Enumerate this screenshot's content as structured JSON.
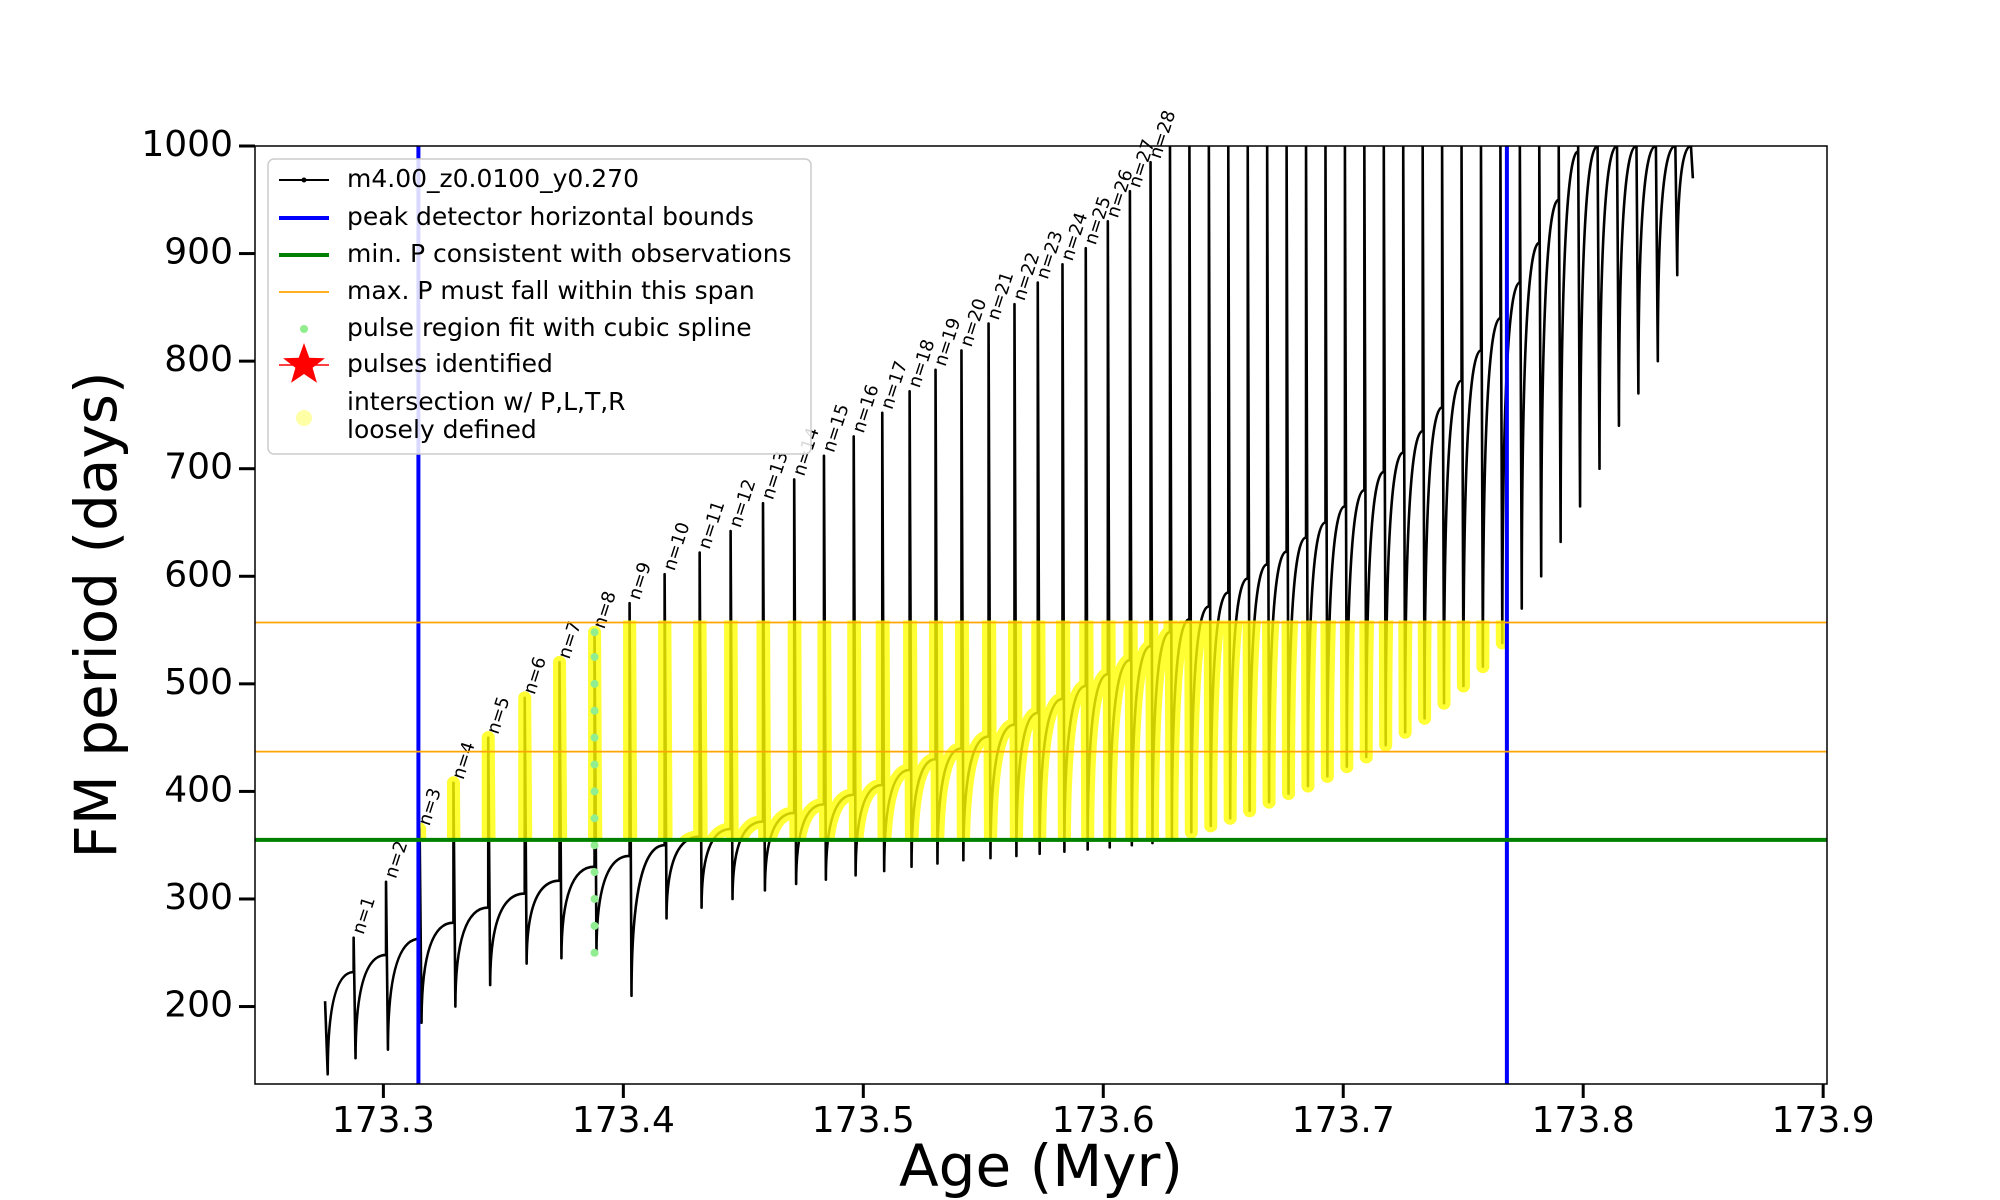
{
  "chart_data": {
    "type": "line",
    "xlabel": "Age (Myr)",
    "ylabel": "FM period (days)",
    "xlim": [
      173.2465,
      173.9016
    ],
    "ylim": [
      128,
      1000
    ],
    "xticks": [
      173.3,
      173.4,
      173.5,
      173.6,
      173.7,
      173.8,
      173.9
    ],
    "yticks": [
      200,
      300,
      400,
      500,
      600,
      700,
      800,
      900,
      1000
    ],
    "series": [
      {
        "name": "m4.00_z0.0100_y0.270",
        "color": "#000000",
        "x": [
          173.2757,
          173.2768,
          173.2876,
          173.2876,
          173.2884,
          173.3011,
          173.3011,
          173.3019,
          173.3151,
          173.3151,
          173.3159,
          173.3292,
          173.3292,
          173.33,
          173.3437,
          173.3437,
          173.3445,
          173.3589,
          173.3589,
          173.3597,
          173.3734,
          173.3734,
          173.3742,
          173.388,
          173.388,
          173.3888,
          173.4026,
          173.4026,
          173.4034,
          173.4172,
          173.4172,
          173.418,
          173.4318,
          173.4318,
          173.4326,
          173.4447,
          173.4447,
          173.4455,
          173.4582,
          173.4582,
          173.459,
          173.4712,
          173.4712,
          173.472,
          173.4836,
          173.4836,
          173.4844,
          173.496,
          173.496,
          173.4968,
          173.5079,
          173.5079,
          173.5087,
          173.5193,
          173.5193,
          173.5201,
          173.5301,
          173.5301,
          173.5309,
          173.5409,
          173.5409,
          173.5417,
          173.5522,
          173.5522,
          173.553,
          173.563,
          173.563,
          173.5638,
          173.5727,
          173.5727,
          173.5735,
          173.583,
          173.583,
          173.5838,
          173.5927,
          173.5927,
          173.5935,
          173.6019,
          173.6019,
          173.6027,
          173.6111,
          173.6111,
          173.6119,
          173.6197,
          173.6197,
          173.6205,
          173.6278,
          173.6278,
          173.6286,
          173.6359,
          173.6359,
          173.6367,
          173.644,
          173.644,
          173.6448,
          173.6521,
          173.6521,
          173.6529,
          173.6602,
          173.6602,
          173.661,
          173.6683,
          173.6683,
          173.6691,
          173.6764,
          173.6764,
          173.6772,
          173.6845,
          173.6845,
          173.6853,
          173.6926,
          173.6926,
          173.6934,
          173.7007,
          173.7007,
          173.7015,
          173.7088,
          173.7088,
          173.7096,
          173.7169,
          173.7169,
          173.7177,
          173.725,
          173.725,
          173.7258,
          173.7331,
          173.7331,
          173.7339,
          173.7412,
          173.7412,
          173.742,
          173.7493,
          173.7493,
          173.7501,
          173.7574,
          173.7574,
          173.7582,
          173.7655,
          173.7655,
          173.7663,
          173.7736,
          173.7736,
          173.7744,
          173.7817,
          173.7817,
          173.7825,
          173.7898,
          173.7898,
          173.7906,
          173.7979,
          173.7979,
          173.7987,
          173.806,
          173.8068,
          173.8141,
          173.8149,
          173.8222,
          173.823,
          173.8303,
          173.8311,
          173.8384,
          173.8392,
          173.8449,
          173.8457
        ],
        "values": [
          205,
          137,
          232,
          264,
          152,
          248,
          316,
          160,
          263,
          365,
          185,
          278,
          408,
          200,
          292,
          450,
          220,
          305,
          487,
          240,
          317,
          520,
          245,
          330,
          548,
          250,
          340,
          575,
          210,
          350,
          602,
          282,
          358,
          622,
          292,
          365,
          642,
          300,
          372,
          668,
          308,
          380,
          690,
          314,
          388,
          712,
          318,
          397,
          730,
          322,
          406,
          752,
          326,
          420,
          772,
          330,
          430,
          792,
          333,
          440,
          810,
          336,
          451,
          835,
          338,
          462,
          853,
          340,
          473,
          873,
          342,
          486,
          890,
          344,
          498,
          905,
          346,
          509,
          930,
          348,
          522,
          958,
          350,
          535,
          985,
          352,
          548,
          1000,
          356,
          560,
          1000,
          362,
          572,
          1000,
          368,
          585,
          1000,
          375,
          598,
          1000,
          382,
          611,
          1000,
          390,
          623,
          1000,
          398,
          636,
          1000,
          405,
          650,
          1000,
          414,
          665,
          1000,
          423,
          680,
          1000,
          432,
          697,
          1000,
          443,
          715,
          1000,
          455,
          735,
          1000,
          468,
          757,
          1000,
          482,
          782,
          1000,
          498,
          810,
          1000,
          516,
          840,
          1000,
          538,
          873,
          1000,
          570,
          910,
          1000,
          600,
          950,
          1000,
          632,
          995,
          1000,
          665,
          1000,
          700,
          1000,
          740,
          1000,
          770,
          1000,
          800,
          1000,
          880,
          1000,
          970
        ]
      }
    ],
    "pulse_labels": [
      "n=1",
      "n=2",
      "n=3",
      "n=4",
      "n=5",
      "n=6",
      "n=7",
      "n=8",
      "n=9",
      "n=10",
      "n=11",
      "n=12",
      "n=13",
      "n=14",
      "n=15",
      "n=16",
      "n=17",
      "n=18",
      "n=19",
      "n=20",
      "n=21",
      "n=22",
      "n=23",
      "n=24",
      "n=25",
      "n=26",
      "n=27",
      "n=28"
    ],
    "bounds": {
      "name": "peak detector horizontal bounds",
      "color": "#0000ff",
      "x": [
        173.3146,
        173.7682
      ]
    },
    "min_period": {
      "name": "min. P consistent with observations",
      "color": "#008000",
      "y": 355
    },
    "max_period_span": {
      "name": "max. P must fall within this span",
      "color": "#ffa500",
      "y": [
        437,
        557
      ]
    },
    "spline": {
      "name": "pulse region fit with cubic spline",
      "color": "#90ee90",
      "x": [
        173.388,
        173.388,
        173.388,
        173.388,
        173.388,
        173.388,
        173.388,
        173.388,
        173.388,
        173.388,
        173.388,
        173.388,
        173.388
      ],
      "values": [
        250,
        275,
        300,
        325,
        350,
        375,
        400,
        425,
        450,
        475,
        500,
        525,
        548
      ]
    },
    "pulses_identified": {
      "name": "pulses identified",
      "color": "#ff0000"
    },
    "intersection": {
      "name": [
        "intersection w/ P,L,T,R",
        "loosely defined"
      ],
      "color": "#ffff00"
    }
  }
}
